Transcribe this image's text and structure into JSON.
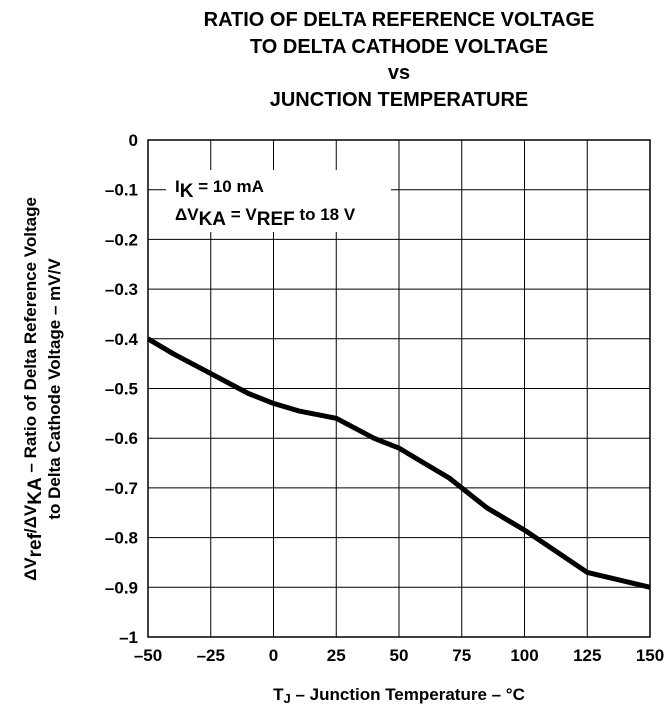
{
  "chart_data": {
    "type": "line",
    "title_lines": [
      "RATIO OF DELTA REFERENCE VOLTAGE",
      "TO DELTA CATHODE VOLTAGE",
      "vs",
      "JUNCTION TEMPERATURE"
    ],
    "xlabel": {
      "main": "T",
      "sub": "J",
      "rest": " – Junction Temperature – °C"
    },
    "ylabel": {
      "line1_parts": [
        {
          "t": "ΔV",
          "sub": false
        },
        {
          "t": "ref",
          "sub": true
        },
        {
          "t": "/ΔV",
          "sub": false
        },
        {
          "t": "KA",
          "sub": true
        },
        {
          "t": " – Ratio of Delta Reference Voltage",
          "sub": false
        }
      ],
      "line2": "to Delta Cathode Voltage – mV/V"
    },
    "xlim": [
      -50,
      150
    ],
    "ylim": [
      -1,
      0
    ],
    "x_ticks": [
      -50,
      -25,
      0,
      25,
      50,
      75,
      100,
      125,
      150
    ],
    "x_tick_labels": [
      "–50",
      "–25",
      "0",
      "25",
      "50",
      "75",
      "100",
      "125",
      "150"
    ],
    "y_ticks": [
      0,
      -0.1,
      -0.2,
      -0.3,
      -0.4,
      -0.5,
      -0.6,
      -0.7,
      -0.8,
      -0.9,
      -1
    ],
    "y_tick_labels": [
      "0",
      "–0.1",
      "–0.2",
      "–0.3",
      "–0.4",
      "–0.5",
      "–0.6",
      "–0.7",
      "–0.8",
      "–0.9",
      "–1"
    ],
    "grid": true,
    "annotations": {
      "line1_parts": [
        {
          "t": "I",
          "sub": false
        },
        {
          "t": "K",
          "sub": true
        },
        {
          "t": " = 10 mA",
          "sub": false
        }
      ],
      "line2_parts": [
        {
          "t": "ΔV",
          "sub": false
        },
        {
          "t": "KA",
          "sub": true
        },
        {
          "t": " = V",
          "sub": false
        },
        {
          "t": "REF",
          "sub": true
        },
        {
          "t": " to 18 V",
          "sub": false
        }
      ]
    },
    "series": [
      {
        "x": [
          -50,
          -40,
          -25,
          -10,
          0,
          10,
          25,
          40,
          50,
          60,
          70,
          85,
          100,
          125,
          150
        ],
        "y": [
          -0.4,
          -0.43,
          -0.47,
          -0.51,
          -0.53,
          -0.545,
          -0.56,
          -0.6,
          -0.62,
          -0.65,
          -0.68,
          -0.74,
          -0.785,
          -0.87,
          -0.9
        ]
      }
    ]
  }
}
